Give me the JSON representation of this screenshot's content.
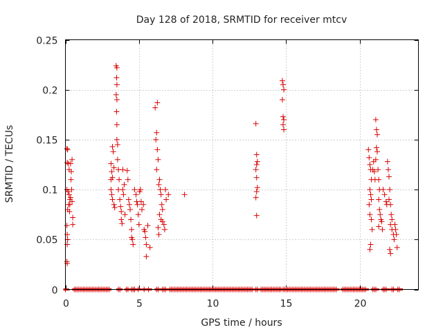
{
  "chart_data": {
    "type": "scatter",
    "title": "Day 128 of 2018, SRMTID for receiver mtcv",
    "xlabel": "GPS time / hours",
    "ylabel": "SRMTID / TECUs",
    "xlim": [
      0,
      24
    ],
    "ylim": [
      0,
      0.25
    ],
    "xticks": [
      0,
      5,
      10,
      15,
      20
    ],
    "xtick_labels": [
      "0",
      "5",
      "10",
      "15",
      "20"
    ],
    "yticks": [
      0,
      0.05,
      0.1,
      0.15,
      0.2,
      0.25
    ],
    "ytick_labels": [
      "0",
      "0.05",
      "0.1",
      "0.15",
      "0.2",
      "0.25"
    ],
    "grid": true,
    "marker": "+",
    "color": "#d80000",
    "series": [
      {
        "name": "SRMTID",
        "points": [
          [
            0.1,
            0.141
          ],
          [
            0.15,
            0.14
          ],
          [
            0.12,
            0.127
          ],
          [
            0.2,
            0.126
          ],
          [
            0.25,
            0.12
          ],
          [
            0.1,
            0.1
          ],
          [
            0.18,
            0.098
          ],
          [
            0.25,
            0.095
          ],
          [
            0.3,
            0.09
          ],
          [
            0.22,
            0.085
          ],
          [
            0.15,
            0.08
          ],
          [
            0.28,
            0.078
          ],
          [
            0.1,
            0.064
          ],
          [
            0.12,
            0.055
          ],
          [
            0.15,
            0.05
          ],
          [
            0.12,
            0.045
          ],
          [
            0.1,
            0.028
          ],
          [
            0.12,
            0.026
          ],
          [
            0.35,
            0.126
          ],
          [
            0.4,
            0.118
          ],
          [
            0.38,
            0.11
          ],
          [
            0.42,
            0.1
          ],
          [
            0.35,
            0.092
          ],
          [
            0.45,
            0.088
          ],
          [
            0.3,
            0.085
          ],
          [
            0.5,
            0.072
          ],
          [
            0.5,
            0.065
          ],
          [
            0.45,
            0.13
          ],
          [
            3.1,
            0.126
          ],
          [
            3.2,
            0.143
          ],
          [
            3.25,
            0.138
          ],
          [
            3.15,
            0.118
          ],
          [
            3.3,
            0.122
          ],
          [
            3.2,
            0.112
          ],
          [
            3.1,
            0.1
          ],
          [
            3.15,
            0.095
          ],
          [
            3.2,
            0.09
          ],
          [
            3.3,
            0.085
          ],
          [
            3.35,
            0.082
          ],
          [
            3.1,
            0.11
          ],
          [
            3.45,
            0.224
          ],
          [
            3.5,
            0.222
          ],
          [
            3.48,
            0.212
          ],
          [
            3.5,
            0.205
          ],
          [
            3.45,
            0.195
          ],
          [
            3.5,
            0.19
          ],
          [
            3.48,
            0.178
          ],
          [
            3.5,
            0.165
          ],
          [
            3.5,
            0.15
          ],
          [
            3.55,
            0.145
          ],
          [
            3.55,
            0.13
          ],
          [
            3.6,
            0.12
          ],
          [
            3.65,
            0.11
          ],
          [
            3.6,
            0.1
          ],
          [
            3.7,
            0.09
          ],
          [
            3.75,
            0.083
          ],
          [
            3.8,
            0.078
          ],
          [
            3.8,
            0.07
          ],
          [
            3.85,
            0.066
          ],
          [
            3.9,
            0.1
          ],
          [
            3.95,
            0.095
          ],
          [
            4.0,
            0.105
          ],
          [
            4.05,
            0.075
          ],
          [
            3.9,
            0.12
          ],
          [
            4.2,
            0.119
          ],
          [
            4.25,
            0.11
          ],
          [
            4.3,
            0.09
          ],
          [
            4.35,
            0.085
          ],
          [
            4.4,
            0.08
          ],
          [
            4.45,
            0.07
          ],
          [
            4.5,
            0.06
          ],
          [
            4.5,
            0.052
          ],
          [
            4.55,
            0.05
          ],
          [
            4.6,
            0.045
          ],
          [
            4.7,
            0.1
          ],
          [
            4.8,
            0.095
          ],
          [
            4.85,
            0.088
          ],
          [
            4.9,
            0.085
          ],
          [
            4.95,
            0.075
          ],
          [
            5.0,
            0.065
          ],
          [
            5.05,
            0.098
          ],
          [
            5.1,
            0.1
          ],
          [
            5.15,
            0.088
          ],
          [
            5.2,
            0.08
          ],
          [
            5.3,
            0.085
          ],
          [
            5.35,
            0.06
          ],
          [
            5.4,
            0.058
          ],
          [
            5.45,
            0.052
          ],
          [
            5.5,
            0.045
          ],
          [
            5.5,
            0.033
          ],
          [
            5.6,
            0.064
          ],
          [
            5.75,
            0.042
          ],
          [
            6.1,
            0.182
          ],
          [
            6.25,
            0.187
          ],
          [
            6.2,
            0.157
          ],
          [
            6.15,
            0.15
          ],
          [
            6.25,
            0.14
          ],
          [
            6.3,
            0.13
          ],
          [
            6.2,
            0.12
          ],
          [
            6.4,
            0.11
          ],
          [
            6.35,
            0.105
          ],
          [
            6.45,
            0.1
          ],
          [
            6.5,
            0.095
          ],
          [
            6.55,
            0.085
          ],
          [
            6.6,
            0.08
          ],
          [
            6.4,
            0.075
          ],
          [
            6.5,
            0.07
          ],
          [
            6.6,
            0.068
          ],
          [
            6.7,
            0.065
          ],
          [
            6.75,
            0.06
          ],
          [
            6.8,
            0.1
          ],
          [
            6.85,
            0.09
          ],
          [
            7.0,
            0.095
          ],
          [
            6.3,
            0.062
          ],
          [
            6.35,
            0.055
          ],
          [
            8.1,
            0.095
          ],
          [
            12.95,
            0.166
          ],
          [
            13.0,
            0.135
          ],
          [
            13.05,
            0.128
          ],
          [
            13.0,
            0.125
          ],
          [
            12.95,
            0.12
          ],
          [
            13.0,
            0.112
          ],
          [
            13.05,
            0.102
          ],
          [
            13.0,
            0.098
          ],
          [
            12.95,
            0.092
          ],
          [
            13.0,
            0.074
          ],
          [
            14.75,
            0.209
          ],
          [
            14.8,
            0.205
          ],
          [
            14.85,
            0.2
          ],
          [
            14.75,
            0.19
          ],
          [
            14.8,
            0.173
          ],
          [
            14.85,
            0.17
          ],
          [
            14.8,
            0.165
          ],
          [
            14.85,
            0.16
          ],
          [
            20.6,
            0.14
          ],
          [
            20.65,
            0.132
          ],
          [
            20.7,
            0.125
          ],
          [
            20.75,
            0.12
          ],
          [
            20.8,
            0.11
          ],
          [
            20.7,
            0.1
          ],
          [
            20.75,
            0.095
          ],
          [
            20.8,
            0.09
          ],
          [
            20.65,
            0.085
          ],
          [
            20.7,
            0.075
          ],
          [
            20.8,
            0.07
          ],
          [
            20.85,
            0.06
          ],
          [
            20.75,
            0.045
          ],
          [
            20.7,
            0.04
          ],
          [
            20.9,
            0.12
          ],
          [
            20.95,
            0.128
          ],
          [
            21.0,
            0.118
          ],
          [
            21.05,
            0.11
          ],
          [
            21.1,
            0.17
          ],
          [
            21.15,
            0.16
          ],
          [
            21.2,
            0.155
          ],
          [
            21.15,
            0.142
          ],
          [
            21.2,
            0.138
          ],
          [
            21.1,
            0.13
          ],
          [
            21.25,
            0.12
          ],
          [
            21.3,
            0.11
          ],
          [
            21.35,
            0.1
          ],
          [
            21.3,
            0.09
          ],
          [
            21.35,
            0.08
          ],
          [
            21.4,
            0.075
          ],
          [
            21.45,
            0.07
          ],
          [
            21.3,
            0.063
          ],
          [
            21.5,
            0.068
          ],
          [
            21.55,
            0.06
          ],
          [
            21.6,
            0.1
          ],
          [
            21.7,
            0.095
          ],
          [
            21.8,
            0.088
          ],
          [
            21.85,
            0.085
          ],
          [
            21.9,
            0.128
          ],
          [
            21.95,
            0.12
          ],
          [
            22.0,
            0.113
          ],
          [
            22.05,
            0.1
          ],
          [
            22.0,
            0.09
          ],
          [
            22.1,
            0.085
          ],
          [
            22.15,
            0.075
          ],
          [
            22.2,
            0.07
          ],
          [
            22.1,
            0.065
          ],
          [
            22.2,
            0.06
          ],
          [
            22.3,
            0.055
          ],
          [
            22.35,
            0.05
          ],
          [
            22.05,
            0.04
          ],
          [
            22.1,
            0.036
          ],
          [
            22.4,
            0.065
          ],
          [
            22.45,
            0.06
          ],
          [
            22.5,
            0.055
          ],
          [
            22.55,
            0.042
          ]
        ],
        "zero_segments": [
          [
            0.0,
            0.1
          ],
          [
            0.6,
            3.0
          ],
          [
            3.6,
            3.75
          ],
          [
            4.15,
            4.3
          ],
          [
            4.5,
            4.8
          ],
          [
            4.95,
            5.05
          ],
          [
            5.35,
            5.45
          ],
          [
            5.65,
            5.75
          ],
          [
            6.2,
            6.35
          ],
          [
            6.6,
            6.9
          ],
          [
            7.1,
            12.7
          ],
          [
            12.95,
            13.1
          ],
          [
            13.3,
            14.65
          ],
          [
            14.8,
            18.5
          ],
          [
            18.85,
            20.5
          ],
          [
            20.9,
            21.2
          ],
          [
            21.6,
            21.9
          ],
          [
            22.2,
            22.35
          ],
          [
            22.6,
            22.8
          ]
        ]
      }
    ]
  }
}
